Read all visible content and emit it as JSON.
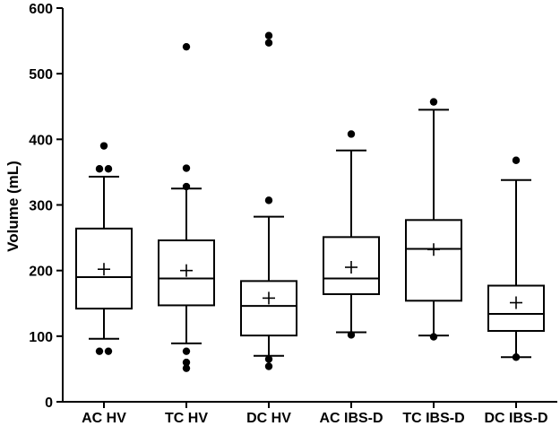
{
  "chart_data": {
    "type": "box",
    "title": "",
    "xlabel": "",
    "ylabel": "Volume (mL)",
    "ylim": [
      0,
      600
    ],
    "yticks": [
      0,
      100,
      200,
      300,
      400,
      500,
      600
    ],
    "yticks_labels": [
      "0",
      "100",
      "200",
      "300",
      "400",
      "500",
      "600"
    ],
    "grid": false,
    "legend": "none",
    "categories": [
      "AC HV",
      "TC HV",
      "DC HV",
      "AC IBS-D",
      "TC IBS-D",
      "DC IBS-D"
    ],
    "boxes": [
      {
        "category": "AC HV",
        "whisker_low": 96,
        "q1": 142,
        "median": 190,
        "q3": 264,
        "whisker_high": 343,
        "mean": 202,
        "outliers": [
          77,
          77,
          355,
          355,
          390
        ]
      },
      {
        "category": "TC HV",
        "whisker_low": 89,
        "q1": 147,
        "median": 188,
        "q3": 246,
        "whisker_high": 325,
        "mean": 200,
        "outliers": [
          51,
          60,
          77,
          328,
          356,
          541
        ]
      },
      {
        "category": "DC HV",
        "whisker_low": 70,
        "q1": 101,
        "median": 146,
        "q3": 184,
        "whisker_high": 282,
        "mean": 158,
        "outliers": [
          54,
          65,
          307,
          547,
          558
        ]
      },
      {
        "category": "AC IBS-D",
        "whisker_low": 106,
        "q1": 164,
        "median": 188,
        "q3": 251,
        "whisker_high": 383,
        "mean": 205,
        "outliers": [
          102,
          408
        ]
      },
      {
        "category": "TC IBS-D",
        "whisker_low": 101,
        "q1": 154,
        "median": 233,
        "q3": 277,
        "whisker_high": 445,
        "mean": 232,
        "outliers": [
          99,
          457
        ]
      },
      {
        "category": "DC IBS-D",
        "whisker_low": 68,
        "q1": 108,
        "median": 134,
        "q3": 177,
        "whisker_high": 338,
        "mean": 151,
        "outliers": [
          68,
          368
        ]
      }
    ],
    "colors": {
      "stroke": "#000000",
      "background": "#ffffff"
    }
  }
}
